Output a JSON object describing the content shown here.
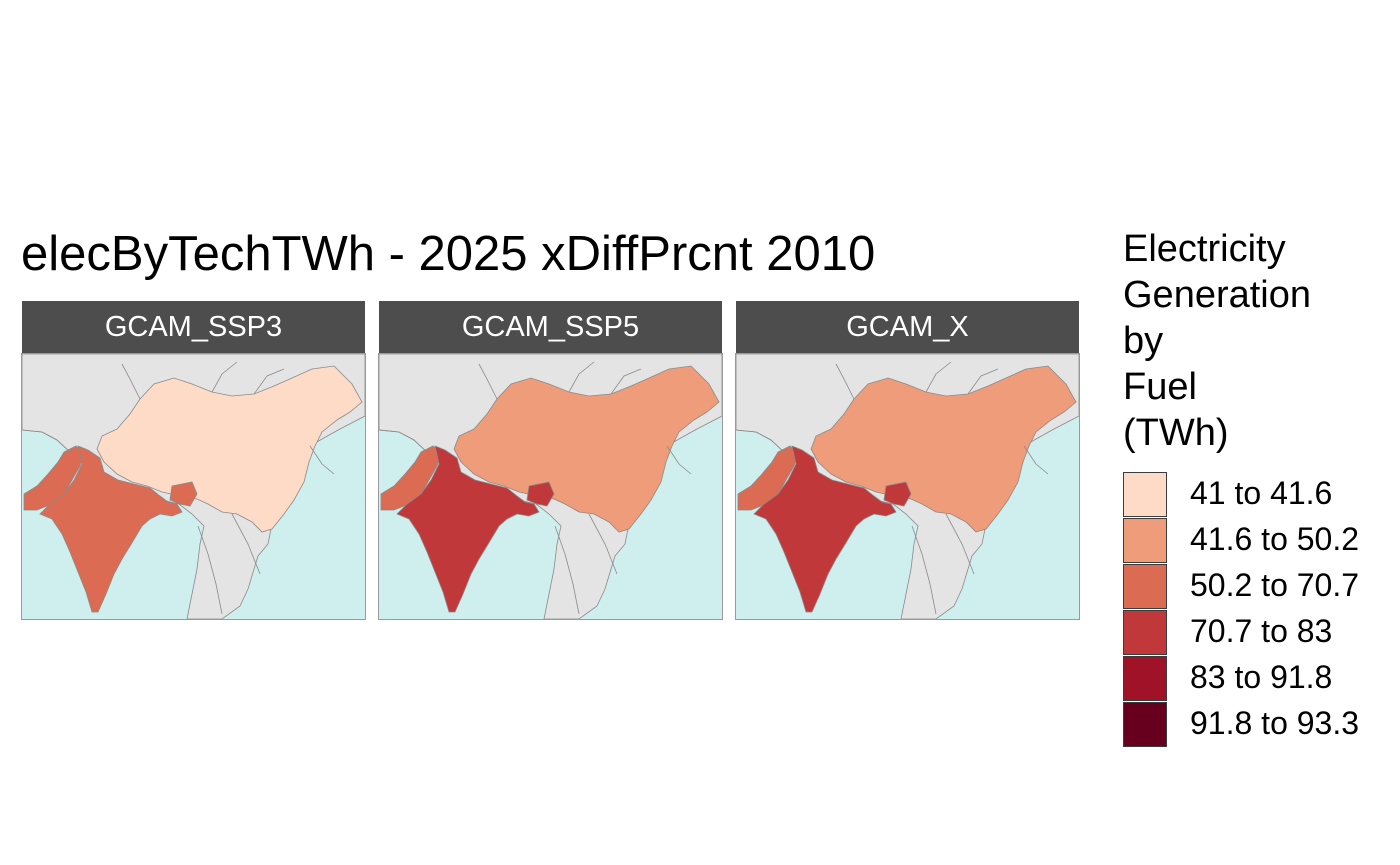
{
  "title": "elecByTechTWh - 2025 xDiffPrcnt 2010",
  "legend": {
    "title_lines": [
      "Electricity",
      "Generation",
      "by",
      "Fuel",
      "(TWh)"
    ],
    "classes": [
      {
        "label": "41 to 41.6",
        "color": "#fddbc7"
      },
      {
        "label": "41.6 to 50.2",
        "color": "#ef9c7a"
      },
      {
        "label": "50.2 to 70.7",
        "color": "#dc6b54"
      },
      {
        "label": "70.7 to 83",
        "color": "#c0383a"
      },
      {
        "label": "83 to 91.8",
        "color": "#a01227"
      },
      {
        "label": "91.8 to 93.3",
        "color": "#67001f"
      }
    ]
  },
  "colors": {
    "ocean": "#cfeeee",
    "land_other": "#e4e4e4",
    "border": "#8a8a8a",
    "strip": "#4d4d4d"
  },
  "panels": [
    {
      "name": "GCAM_SSP3",
      "regions": {
        "China": "41 to 41.6",
        "India": "50.2 to 70.7",
        "Pakistan": "50.2 to 70.7"
      }
    },
    {
      "name": "GCAM_SSP5",
      "regions": {
        "China": "41.6 to 50.2",
        "India": "70.7 to 83",
        "Pakistan": "50.2 to 70.7"
      }
    },
    {
      "name": "GCAM_X",
      "regions": {
        "China": "41.6 to 50.2",
        "India": "70.7 to 83",
        "Pakistan": "50.2 to 70.7"
      }
    }
  ]
}
